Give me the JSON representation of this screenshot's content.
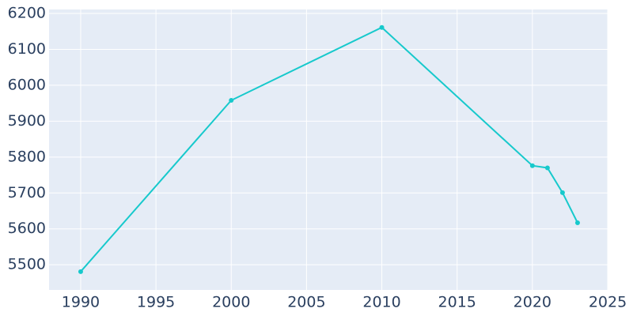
{
  "chart_data": {
    "type": "line",
    "x": [
      1990,
      2000,
      2010,
      2020,
      2021,
      2022,
      2023
    ],
    "series": [
      {
        "color": "#17c9cc",
        "values": [
          5481,
          5958,
          6161,
          5776,
          5770,
          5701,
          5617
        ]
      }
    ],
    "xlim": [
      1987.9,
      2025
    ],
    "xticks": [
      1990,
      1995,
      2000,
      2005,
      2010,
      2015,
      2020,
      2025
    ],
    "ylim": [
      5430,
      6211
    ],
    "yticks": [
      5500,
      5600,
      5700,
      5800,
      5900,
      6000,
      6100,
      6200
    ],
    "grid": true
  }
}
